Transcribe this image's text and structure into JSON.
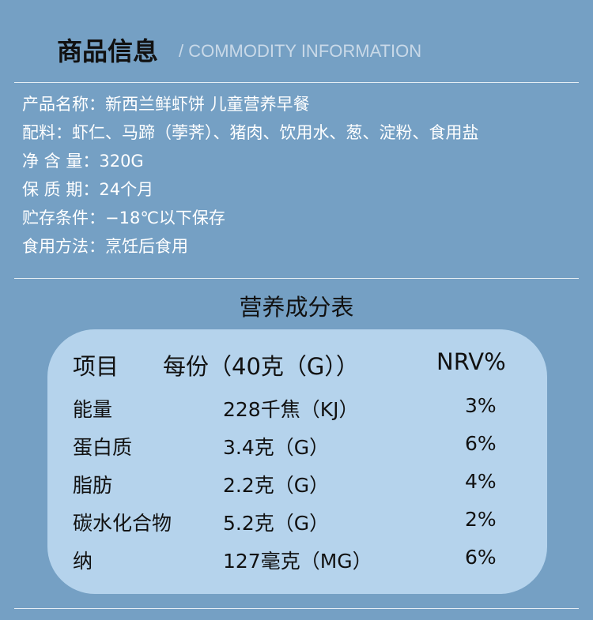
{
  "header": {
    "title": "商品信息",
    "subtitle": "/ COMMODITY INFORMATION"
  },
  "info": [
    "产品名称：新西兰鲜虾饼 儿童营养早餐",
    "配料：虾仁、马蹄（荸荠）、猪肉、饮用水、葱、淀粉、食用盐",
    "净 含 量：320G",
    "保 质 期：24个月",
    "贮存条件：−18℃以下保存",
    "食用方法：烹饪后食用"
  ],
  "table": {
    "title": "营养成分表",
    "headers": [
      "项目",
      "每份（40克（G））",
      "NRV%"
    ],
    "rows": [
      [
        "能量",
        "228千焦（KJ）",
        "3%"
      ],
      [
        "蛋白质",
        "3.4克（G）",
        "6%"
      ],
      [
        "脂肪",
        "2.2克（G）",
        "4%"
      ],
      [
        "碳水化合物",
        "5.2克（G）",
        "2%"
      ],
      [
        "纳",
        "127毫克（MG）",
        "6%"
      ]
    ]
  }
}
